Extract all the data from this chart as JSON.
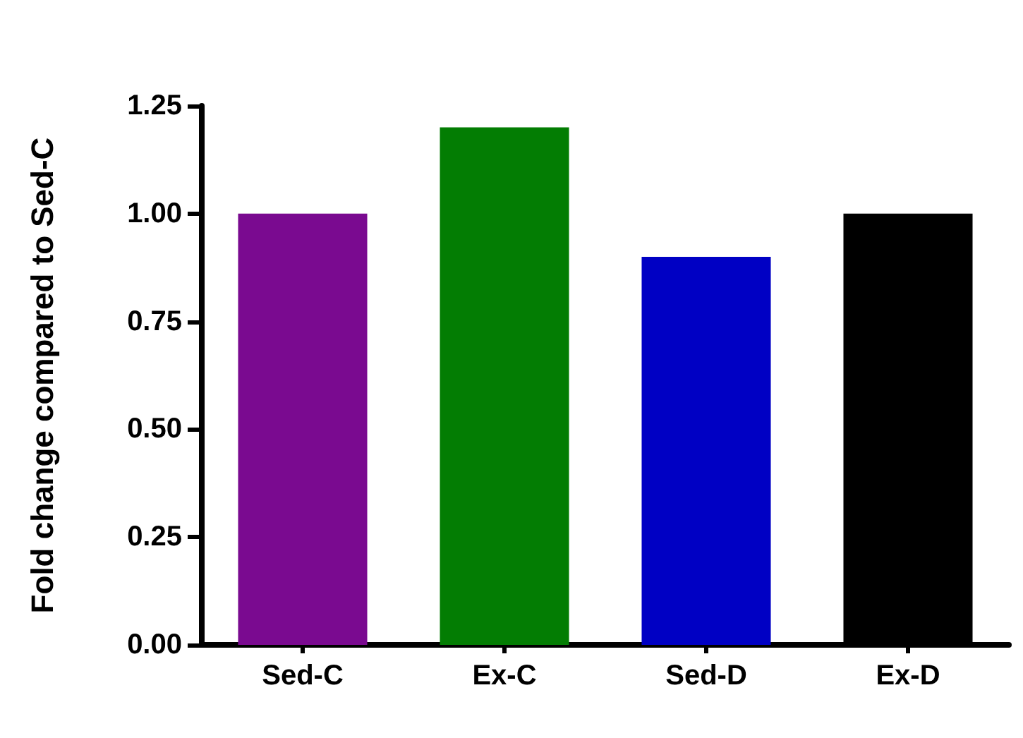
{
  "chart_data": {
    "type": "bar",
    "ylabel": "Fold change compared to Sed-C",
    "categories": [
      "Sed-C",
      "Ex-C",
      "Sed-D",
      "Ex-D"
    ],
    "values": [
      1.0,
      1.2,
      0.9,
      1.0
    ],
    "colors": [
      "#7a0a90",
      "#037d03",
      "#0000c4",
      "#000000"
    ],
    "ylim": [
      0,
      1.25
    ],
    "yticks": [
      {
        "value": 0,
        "label": "0.00"
      },
      0.25,
      {
        "value": 0.5,
        "label": "0.50"
      },
      0.75,
      {
        "value": 1,
        "label": "1.00"
      },
      1.25
    ],
    "grid": false
  }
}
